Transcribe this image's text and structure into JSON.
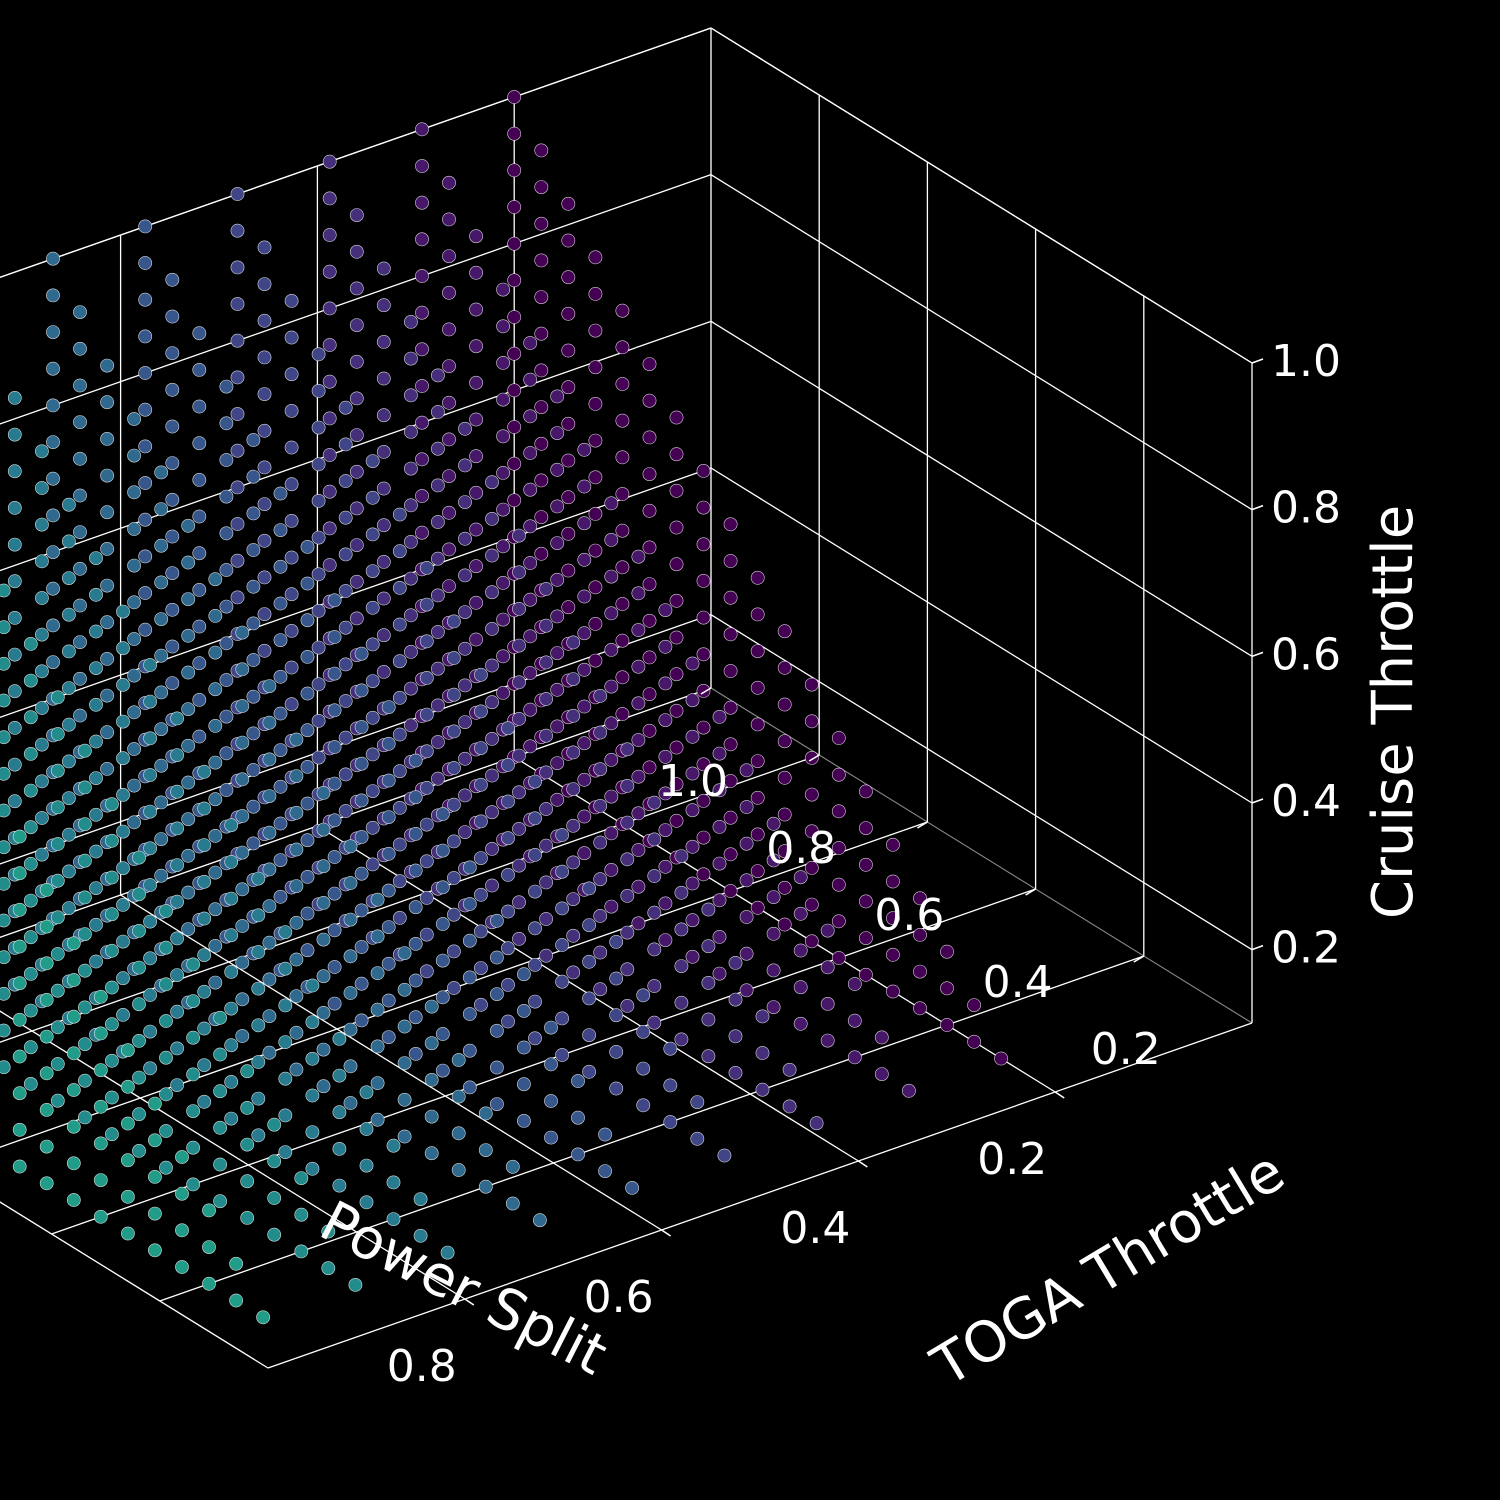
{
  "chart_data": {
    "type": "scatter",
    "title": "",
    "axes": {
      "x": {
        "label": "Power Split",
        "lim": [
          0.0,
          1.0
        ],
        "ticks": [
          0.2,
          0.4,
          0.6,
          0.8
        ],
        "tick_labels": [
          "0.2",
          "0.4",
          "0.6",
          "0.8"
        ],
        "direction": "reversed"
      },
      "y": {
        "label": "TOGA Throttle",
        "lim": [
          0.0,
          1.0
        ],
        "ticks": [
          0.2,
          0.4,
          0.6,
          0.8,
          1.0
        ],
        "tick_labels": [
          "0.2",
          "0.4",
          "0.6",
          "0.8",
          "1.0"
        ]
      },
      "z": {
        "label": "Cruise Throttle",
        "lim": [
          0.1,
          1.0
        ],
        "ticks": [
          0.2,
          0.4,
          0.6,
          0.8,
          1.0
        ],
        "tick_labels": [
          "0.2",
          "0.4",
          "0.6",
          "0.8",
          "1.0"
        ]
      }
    },
    "grid": true,
    "background": "#000000",
    "pane_edge_color": "#ffffff",
    "marker_edge_color": "#ffffff",
    "colormap": "viridis",
    "colormap_range": [
      0.0,
      0.55
    ],
    "point_grid": {
      "power_split": {
        "start": 0.2,
        "stop": 0.95,
        "count": 9
      },
      "toga_throttle": {
        "start": 0.1,
        "stop": 1.0,
        "count": 19
      },
      "cruise_throttle": {
        "start": 0.1,
        "stop": 1.0,
        "count": 19
      },
      "constraint": "cruise_throttle <= toga_throttle"
    }
  }
}
